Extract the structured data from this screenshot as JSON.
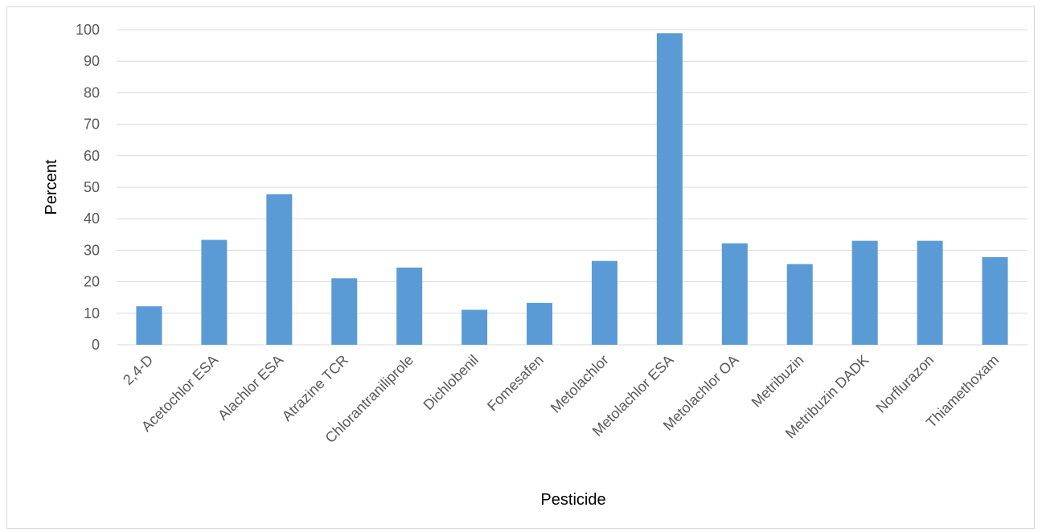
{
  "chart_data": {
    "type": "bar",
    "categories": [
      "2,4-D",
      "Acetochlor ESA",
      "Alachlor ESA",
      "Atrazine TCR",
      "Chlorantraniliprole",
      "Dichlobenil",
      "Fomesafen",
      "Metolachlor",
      "Metolachlor ESA",
      "Metolachlor OA",
      "Metribuzin",
      "Metribuzin DADK",
      "Norflurazon",
      "Thiamethoxam"
    ],
    "values": [
      12.2,
      33.3,
      47.8,
      21.1,
      24.5,
      11.1,
      13.3,
      26.6,
      98.9,
      32.2,
      25.6,
      33.0,
      33.0,
      27.8
    ],
    "title": "",
    "xlabel": "Pesticide",
    "ylabel": "Percent",
    "ylim": [
      0,
      100
    ],
    "yticks": [
      "0",
      "10",
      "20",
      "30",
      "40",
      "50",
      "60",
      "70",
      "80",
      "90",
      "100"
    ],
    "grid": true,
    "bar_color": "#5b9bd5",
    "grid_color": "#d9d9d9"
  }
}
